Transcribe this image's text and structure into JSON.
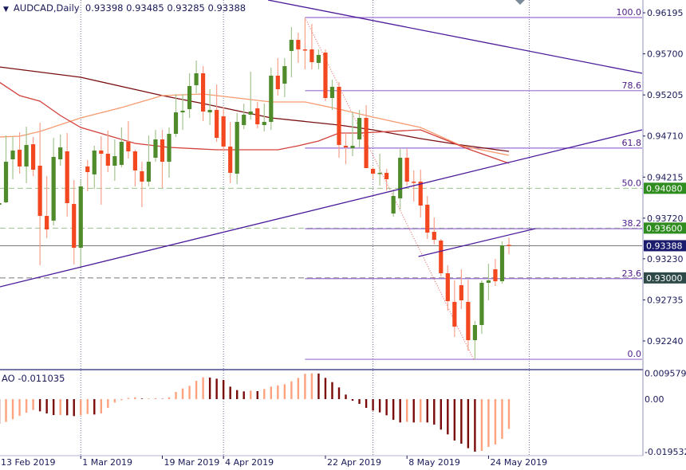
{
  "header": {
    "menu_icon": "triangle-down-icon",
    "symbol": "AUDCAD,Daily",
    "ohlc": "0.93398 0.93485 0.93285 0.93388"
  },
  "ao_header": {
    "label": "AO -0.011035"
  },
  "colors": {
    "bull_body": "#4f8a2b",
    "bull_wick": "#a4c48e",
    "bear_body": "#f2471f",
    "bear_wick": "#f7a08a",
    "ma_slow": "#7a0f12",
    "ma_mid": "#f79a6e",
    "ma_fast": "#d2403c",
    "trendline": "#4b1a9a",
    "fib": "#9a6fd0",
    "fib_text": "#4b1a86",
    "zigzag": "#f05a5a",
    "level_green": "#9bc48b",
    "level_gray": "#777777",
    "green_label": "#2f8c1f",
    "bid_label": "#1b1b6e",
    "gray_label": "#2e4a48",
    "ao_up": "#ffa27e",
    "ao_down": "#7a0a0a",
    "axis_text": "#1a1a5a",
    "separator": "#7676a8"
  },
  "chart_data": [
    {
      "type": "candlestick",
      "title": "AUDCAD,Daily",
      "ylim": [
        0.91861,
        0.96349
      ],
      "y_ticks": [
        "0.96195",
        "0.95700",
        "0.95205",
        "0.94710",
        "0.94215",
        "0.93720",
        "0.93230",
        "0.92735",
        "0.92240"
      ],
      "x_ticks": [
        {
          "bar": 0,
          "label": "13 Feb 2019"
        },
        {
          "bar": 12,
          "label": "1 Mar 2019"
        },
        {
          "bar": 24,
          "label": "19 Mar 2019"
        },
        {
          "bar": 33,
          "label": "4 Apr 2019"
        },
        {
          "bar": 48,
          "label": "22 Apr 2019"
        },
        {
          "bar": 60,
          "label": "8 May 2019"
        },
        {
          "bar": 72,
          "label": "24 May 2019"
        }
      ],
      "period_separators": [
        12,
        33,
        55,
        78
      ],
      "candles_ohlc": [
        [
          0.93882,
          0.93949,
          0.93834,
          0.93901
        ],
        [
          0.93911,
          0.94717,
          0.93901,
          0.944
        ],
        [
          0.94429,
          0.94707,
          0.94189,
          0.94535
        ],
        [
          0.94544,
          0.94755,
          0.94256,
          0.94343
        ],
        [
          0.94343,
          0.94823,
          0.94141,
          0.94602
        ],
        [
          0.94611,
          0.94698,
          0.94227,
          0.94304
        ],
        [
          0.94352,
          0.94871,
          0.93152,
          0.93747
        ],
        [
          0.93747,
          0.94227,
          0.93479,
          0.93584
        ],
        [
          0.9369,
          0.94688,
          0.93632,
          0.94458
        ],
        [
          0.94429,
          0.94727,
          0.94352,
          0.94573
        ],
        [
          0.94525,
          0.94746,
          0.93737,
          0.93901
        ],
        [
          0.93891,
          0.94179,
          0.93162,
          0.93363
        ],
        [
          0.93363,
          0.94179,
          0.93114,
          0.94103
        ],
        [
          0.94343,
          0.94419,
          0.94045,
          0.94275
        ],
        [
          0.94247,
          0.94592,
          0.94074,
          0.94535
        ],
        [
          0.94535,
          0.94707,
          0.93882,
          0.94496
        ],
        [
          0.94496,
          0.94775,
          0.94275,
          0.94352
        ],
        [
          0.94352,
          0.94669,
          0.9417,
          0.94467
        ],
        [
          0.94362,
          0.94813,
          0.94333,
          0.9464
        ],
        [
          0.9464,
          0.9489,
          0.94439,
          0.94525
        ],
        [
          0.94525,
          0.94544,
          0.94103,
          0.94295
        ],
        [
          0.94285,
          0.944,
          0.93853,
          0.9416
        ],
        [
          0.9416,
          0.94717,
          0.94103,
          0.944
        ],
        [
          0.94448,
          0.94784,
          0.944,
          0.94669
        ],
        [
          0.94669,
          0.94784,
          0.94083,
          0.944
        ],
        [
          0.944,
          0.94813,
          0.94208,
          0.94736
        ],
        [
          0.94736,
          0.95216,
          0.94698,
          0.94995
        ],
        [
          0.94995,
          0.95216,
          0.94784,
          0.95015
        ],
        [
          0.95034,
          0.95466,
          0.94928,
          0.95312
        ],
        [
          0.95322,
          0.95619,
          0.95226,
          0.95466
        ],
        [
          0.95466,
          0.95552,
          0.9489,
          0.95005
        ],
        [
          0.94995,
          0.95274,
          0.94842,
          0.95024
        ],
        [
          0.95024,
          0.95331,
          0.9464,
          0.94688
        ],
        [
          0.94947,
          0.95053,
          0.94525,
          0.94583
        ],
        [
          0.94583,
          0.9488,
          0.94141,
          0.94266
        ],
        [
          0.94256,
          0.94986,
          0.94131,
          0.9488
        ],
        [
          0.94842,
          0.95101,
          0.94794,
          0.94967
        ],
        [
          0.94967,
          0.95485,
          0.94909,
          0.95005
        ],
        [
          0.95043,
          0.9512,
          0.94803,
          0.94851
        ],
        [
          0.94842,
          0.95101,
          0.94765,
          0.9488
        ],
        [
          0.9488,
          0.95533,
          0.94784,
          0.95437
        ],
        [
          0.95437,
          0.95648,
          0.95197,
          0.95274
        ],
        [
          0.95341,
          0.95648,
          0.95178,
          0.95552
        ],
        [
          0.95735,
          0.96023,
          0.95418,
          0.95869
        ],
        [
          0.95869,
          0.95955,
          0.95591,
          0.95754
        ],
        [
          0.95754,
          0.96138,
          0.95514,
          0.95744
        ],
        [
          0.95754,
          0.96061,
          0.95514,
          0.956
        ],
        [
          0.95591,
          0.95754,
          0.95514,
          0.95687
        ],
        [
          0.95715,
          0.95754,
          0.9513,
          0.95168
        ],
        [
          0.95168,
          0.95389,
          0.95024,
          0.95303
        ],
        [
          0.95303,
          0.9536,
          0.94448,
          0.94602
        ],
        [
          0.94592,
          0.94746,
          0.94371,
          0.94573
        ],
        [
          0.94563,
          0.95005,
          0.94467,
          0.94592
        ],
        [
          0.94669,
          0.95024,
          0.94573,
          0.94928
        ],
        [
          0.94928,
          0.95082,
          0.94323,
          0.94323
        ],
        [
          0.94314,
          0.94333,
          0.94189,
          0.94256
        ],
        [
          0.94256,
          0.94496,
          0.94112,
          0.94266
        ],
        [
          0.94266,
          0.94314,
          0.94055,
          0.94189
        ],
        [
          0.93776,
          0.94064,
          0.93737,
          0.93987
        ],
        [
          0.93959,
          0.94554,
          0.93824,
          0.94448
        ],
        [
          0.94448,
          0.94554,
          0.94112,
          0.9416
        ],
        [
          0.9416,
          0.94295,
          0.9392,
          0.94151
        ],
        [
          0.9416,
          0.94304,
          0.93728,
          0.93872
        ],
        [
          0.93882,
          0.93987,
          0.93469,
          0.93546
        ],
        [
          0.93555,
          0.93728,
          0.93402,
          0.93459
        ],
        [
          0.9345,
          0.93469,
          0.93018,
          0.93056
        ],
        [
          0.93056,
          0.93152,
          0.92605,
          0.9272
        ],
        [
          0.92711,
          0.9297,
          0.92288,
          0.92413
        ],
        [
          0.92912,
          0.93104,
          0.92624,
          0.9273
        ],
        [
          0.92711,
          0.92979,
          0.92125,
          0.9225
        ],
        [
          0.9225,
          0.9248,
          0.92019,
          0.92432
        ],
        [
          0.92432,
          0.9297,
          0.92327,
          0.92941
        ],
        [
          0.92941,
          0.93171,
          0.9273,
          0.9297
        ],
        [
          0.93104,
          0.93229,
          0.92903,
          0.9296
        ],
        [
          0.9296,
          0.9344,
          0.92931,
          0.93392
        ],
        [
          0.93398,
          0.93485,
          0.93285,
          0.93388
        ]
      ],
      "moving_averages": [
        {
          "color_key": "ma_slow",
          "points": [
            [
              0,
              0.95543
            ],
            [
              12,
              0.95418
            ],
            [
              24,
              0.95197
            ],
            [
              30,
              0.95101
            ],
            [
              40,
              0.94928
            ],
            [
              50,
              0.94842
            ],
            [
              55,
              0.94784
            ],
            [
              62,
              0.94679
            ],
            [
              68,
              0.94602
            ],
            [
              75,
              0.94525
            ]
          ]
        },
        {
          "color_key": "ma_mid",
          "points": [
            [
              0,
              0.94698
            ],
            [
              3,
              0.94707
            ],
            [
              6,
              0.94765
            ],
            [
              12,
              0.94928
            ],
            [
              18,
              0.95053
            ],
            [
              24,
              0.95197
            ],
            [
              30,
              0.95216
            ],
            [
              40,
              0.9512
            ],
            [
              45,
              0.9512
            ],
            [
              50,
              0.95034
            ],
            [
              55,
              0.94938
            ],
            [
              62,
              0.94813
            ],
            [
              68,
              0.94592
            ],
            [
              75,
              0.94477
            ]
          ]
        },
        {
          "color_key": "ma_fast",
          "points": [
            [
              0,
              0.9536
            ],
            [
              3,
              0.95197
            ],
            [
              6,
              0.9513
            ],
            [
              9,
              0.94957
            ],
            [
              12,
              0.94813
            ],
            [
              16,
              0.94717
            ],
            [
              20,
              0.94621
            ],
            [
              25,
              0.94573
            ],
            [
              32,
              0.94544
            ],
            [
              41,
              0.94544
            ],
            [
              44,
              0.94592
            ],
            [
              47,
              0.9465
            ],
            [
              50,
              0.94746
            ],
            [
              53,
              0.94746
            ],
            [
              62,
              0.94784
            ],
            [
              69,
              0.94554
            ],
            [
              75,
              0.94381
            ]
          ]
        }
      ],
      "trendlines": [
        {
          "name": "descending-trendline",
          "from": [
            39.55,
            0.96349
          ],
          "to": [
            94.6,
            0.95466
          ]
        },
        {
          "name": "ascending-trendline",
          "from": [
            0.12,
            0.92893
          ],
          "to": [
            94.6,
            0.94784
          ]
        },
        {
          "name": "short-ascending-trendline",
          "from": [
            61.7,
            0.93258
          ],
          "to": [
            78.9,
            0.93594
          ]
        }
      ],
      "zigzag": {
        "from": [
          45,
          0.96138
        ],
        "to": [
          69.8,
          0.92019
        ]
      },
      "fibonacci": {
        "start_bar": 45,
        "high": 0.96138,
        "low": 0.92019,
        "levels": [
          {
            "ratio": 1.0,
            "label": "100.0"
          },
          {
            "ratio": 0.786,
            "label": "78.6"
          },
          {
            "ratio": 0.618,
            "label": "61.8"
          },
          {
            "ratio": 0.5,
            "label": "50.0",
            "line": false
          },
          {
            "ratio": 0.382,
            "label": "38.2"
          },
          {
            "ratio": 0.236,
            "label": "23.6"
          },
          {
            "ratio": 0.0,
            "label": "0.0"
          }
        ]
      },
      "horizontal_levels": [
        {
          "price": 0.9408,
          "label": "0.94080",
          "style": "dashed",
          "color_key": "level_green",
          "label_bg": "green_label"
        },
        {
          "price": 0.936,
          "label": "0.93600",
          "style": "dashed",
          "color_key": "level_green",
          "label_bg": "green_label"
        },
        {
          "price": 0.93388,
          "label": "0.93388",
          "style": "solid",
          "color_key": "level_gray",
          "label_bg": "bid_label"
        },
        {
          "price": 0.93,
          "label": "0.93000",
          "style": "dashed",
          "color_key": "level_gray",
          "label_bg": "gray_label"
        }
      ]
    },
    {
      "type": "bar",
      "title": "AO -0.011035",
      "ylim": [
        -0.019532,
        0.009579
      ],
      "y_ticks": [
        "0.009579",
        "0.00",
        "-0.019532"
      ],
      "values": [
        -0.00917,
        -0.00848,
        -0.00749,
        -0.00621,
        -0.00503,
        -0.00404,
        -0.00454,
        -0.00532,
        -0.00592,
        -0.0059,
        -0.00601,
        -0.00631,
        -0.00601,
        -0.00552,
        -0.00572,
        -0.00532,
        -0.00325,
        -0.00128,
        -0.00039,
        0.00039,
        0.00069,
        0.0002,
        0.00022,
        0.0003,
        0.0001,
        0.00069,
        0.00266,
        0.00394,
        0.00493,
        0.0068,
        0.00809,
        0.008,
        0.00759,
        0.0071,
        0.00463,
        0.00335,
        0.00286,
        0.00316,
        0.00296,
        0.00375,
        0.00463,
        0.00513,
        0.00552,
        0.00661,
        0.00789,
        0.0094,
        0.009579,
        0.0095,
        0.00789,
        0.00631,
        0.00434,
        0.00168,
        -0.00059,
        -0.00177,
        -0.00325,
        -0.00424,
        -0.00493,
        -0.00601,
        -0.00769,
        -0.00868,
        -0.00848,
        -0.00868,
        -0.0086,
        -0.00868,
        -0.00946,
        -0.01134,
        -0.01311,
        -0.01538,
        -0.01656,
        -0.01824,
        -0.019532,
        -0.01923,
        -0.01775,
        -0.01686,
        -0.01479,
        -0.011035
      ]
    }
  ]
}
